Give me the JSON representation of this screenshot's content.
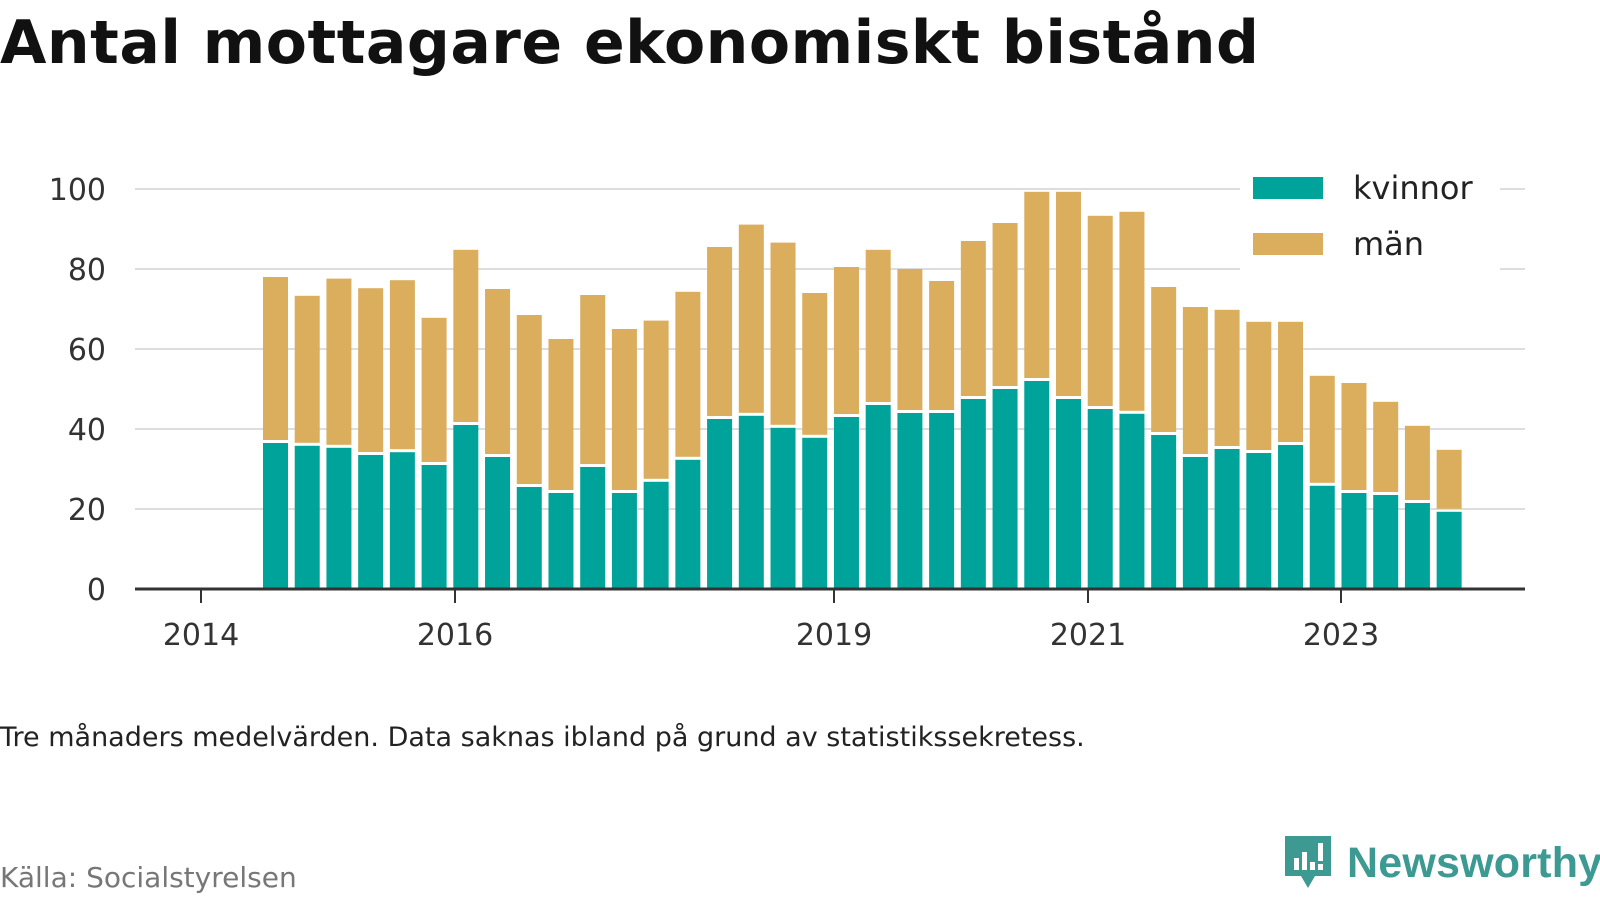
{
  "header": {
    "title": "Antal mottagare ekonomiskt bistånd"
  },
  "footer": {
    "note": "Tre månaders medelvärden. Data saknas ibland på grund av statistikssekretess.",
    "source": "Källa: Socialstyrelsen",
    "logo_text": "Newsworthy"
  },
  "colors": {
    "kvinnor": "#00a39a",
    "man": "#dbae5e",
    "grid": "#dddddd",
    "axis": "#333333",
    "logo": "#3d9a93"
  },
  "chart_data": {
    "type": "bar",
    "stacked": true,
    "title": "Antal mottagare ekonomiskt bistånd",
    "xlabel": "",
    "ylabel": "",
    "ylim": [
      0,
      100
    ],
    "yticks": [
      0,
      20,
      40,
      60,
      80,
      100
    ],
    "xticks": [
      "2014",
      "2016",
      "2019",
      "2021",
      "2023"
    ],
    "grid": true,
    "legend_position": "top-right",
    "series": [
      {
        "name": "kvinnor",
        "color": "#00a39a",
        "values": [
          36.5,
          35.8,
          35.3,
          33.5,
          34.2,
          31.0,
          41.0,
          33.0,
          25.5,
          24.0,
          30.5,
          24.0,
          26.8,
          32.3,
          42.5,
          43.3,
          40.3,
          37.8,
          43.0,
          46.0,
          44.0,
          44.0,
          47.5,
          50.0,
          52.0,
          47.5,
          45.0,
          43.8,
          38.5,
          33.0,
          35.0,
          34.0,
          36.0,
          25.8,
          24.0,
          23.5,
          21.5,
          19.3
        ]
      },
      {
        "name": "män",
        "color": "#dbae5e",
        "values": [
          41.5,
          37.5,
          42.3,
          41.7,
          43.0,
          36.8,
          43.8,
          42.0,
          43.0,
          38.5,
          43.0,
          41.0,
          40.3,
          42.0,
          43.0,
          47.8,
          46.3,
          36.2,
          37.5,
          38.8,
          36.0,
          33.0,
          39.5,
          41.5,
          47.3,
          51.8,
          48.3,
          50.5,
          37.0,
          37.5,
          34.8,
          32.8,
          30.8,
          27.5,
          27.5,
          23.3,
          19.3,
          15.5
        ]
      }
    ]
  }
}
